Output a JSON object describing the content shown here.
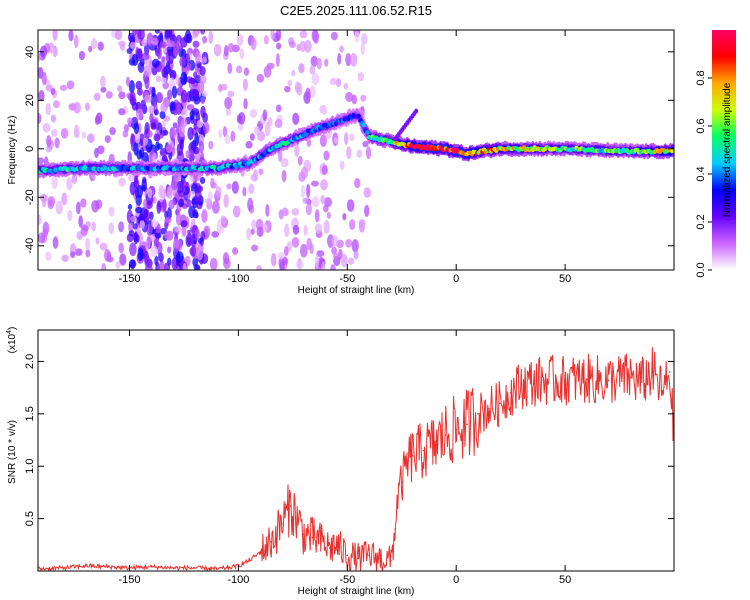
{
  "title": "C2E5.2025.111.06.52.R15",
  "chart_data": [
    {
      "type": "heatmap",
      "xlabel": "Height of straight line (km)",
      "ylabel": "Frequency (Hz)",
      "xlim": [
        -192,
        100
      ],
      "ylim": [
        -50,
        49
      ],
      "xticks": [
        -150,
        -100,
        -50,
        0,
        50
      ],
      "yticks": [
        -40,
        -20,
        0,
        20,
        40
      ],
      "grid": false,
      "colorbar": {
        "label": "Normalized spectral amplitude",
        "range": [
          0,
          1
        ],
        "ticks": [
          "0.0",
          "0.2",
          "0.4",
          "0.6",
          "0.8"
        ],
        "colors": [
          "#ffffff",
          "#cc66ff",
          "#6600ff",
          "#0000ff",
          "#00ccff",
          "#00ff66",
          "#ccff00",
          "#ffaa00",
          "#ff0000",
          "#ff0066"
        ]
      },
      "ridge": [
        {
          "x": -192,
          "freq": -9,
          "amp": 0.45
        },
        {
          "x": -170,
          "freq": -8,
          "amp": 0.5
        },
        {
          "x": -150,
          "freq": -8,
          "amp": 0.4
        },
        {
          "x": -130,
          "freq": -8,
          "amp": 0.4
        },
        {
          "x": -110,
          "freq": -8,
          "amp": 0.45
        },
        {
          "x": -95,
          "freq": -6,
          "amp": 0.4
        },
        {
          "x": -85,
          "freq": 0,
          "amp": 0.45
        },
        {
          "x": -75,
          "freq": 4,
          "amp": 0.45
        },
        {
          "x": -65,
          "freq": 8,
          "amp": 0.4
        },
        {
          "x": -55,
          "freq": 11,
          "amp": 0.35
        },
        {
          "x": -45,
          "freq": 14,
          "amp": 0.3
        },
        {
          "x": -40,
          "freq": 5,
          "amp": 0.5
        },
        {
          "x": -30,
          "freq": 3,
          "amp": 0.6
        },
        {
          "x": -20,
          "freq": 1,
          "amp": 0.85
        },
        {
          "x": -5,
          "freq": 0,
          "amp": 0.9
        },
        {
          "x": 5,
          "freq": -2,
          "amp": 0.85
        },
        {
          "x": 20,
          "freq": 0,
          "amp": 0.7
        },
        {
          "x": 50,
          "freq": 0,
          "amp": 0.55
        },
        {
          "x": 80,
          "freq": -1,
          "amp": 0.55
        },
        {
          "x": 100,
          "freq": -1,
          "amp": 0.8
        }
      ]
    },
    {
      "type": "line",
      "xlabel": "Height of straight line (km)",
      "ylabel": "SNR (10 * v/v)",
      "yscale_label": "(x10",
      "yscale_exp": "4",
      "xlim": [
        -192,
        100
      ],
      "ylim": [
        0,
        2.3
      ],
      "xticks": [
        -150,
        -100,
        -50,
        0,
        50
      ],
      "yticks": [
        0.5,
        1.0,
        1.5,
        2.0
      ],
      "ytick_labels": [
        "0.5",
        "1.0",
        "1.5",
        "2.0"
      ],
      "grid": false,
      "series": [
        {
          "color": "#e8312f",
          "x": [
            -192,
            -180,
            -170,
            -160,
            -150,
            -140,
            -130,
            -120,
            -110,
            -105,
            -100,
            -95,
            -90,
            -85,
            -80,
            -76,
            -73,
            -70,
            -66,
            -62,
            -58,
            -55,
            -50,
            -45,
            -40,
            -35,
            -30,
            -28,
            -27,
            -25,
            -22,
            -20,
            -15,
            -10,
            -5,
            0,
            5,
            10,
            15,
            20,
            25,
            30,
            40,
            50,
            60,
            70,
            80,
            85,
            90,
            95,
            98,
            100
          ],
          "values": [
            0.02,
            0.03,
            0.05,
            0.04,
            0.03,
            0.04,
            0.03,
            0.03,
            0.02,
            0.03,
            0.05,
            0.1,
            0.18,
            0.28,
            0.45,
            0.62,
            0.5,
            0.35,
            0.32,
            0.28,
            0.22,
            0.25,
            0.15,
            0.12,
            0.15,
            0.12,
            0.1,
            0.4,
            0.7,
            0.85,
            1.05,
            1.1,
            1.15,
            1.2,
            1.3,
            1.35,
            1.4,
            1.5,
            1.55,
            1.6,
            1.7,
            1.78,
            1.82,
            1.82,
            1.83,
            1.82,
            1.85,
            1.8,
            1.9,
            1.7,
            1.9,
            1.3
          ]
        }
      ]
    }
  ]
}
